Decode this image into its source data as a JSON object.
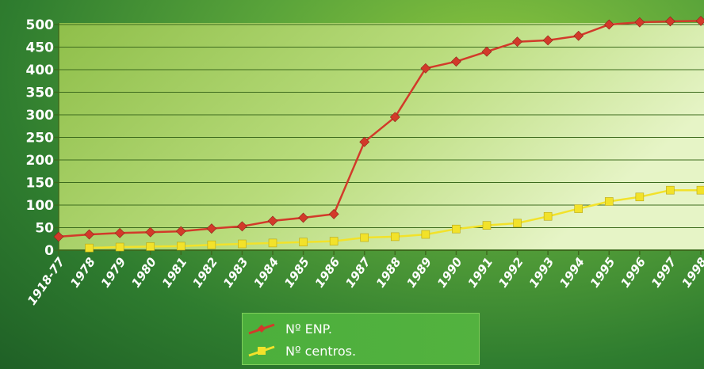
{
  "chart_data": {
    "type": "line",
    "categories": [
      "1918-77",
      "1978",
      "1979",
      "1980",
      "1981",
      "1982",
      "1983",
      "1984",
      "1985",
      "1986",
      "1987",
      "1988",
      "1989",
      "1990",
      "1991",
      "1992",
      "1993",
      "1994",
      "1995",
      "1996",
      "1997",
      "1998"
    ],
    "series": [
      {
        "name": "Nº ENP.",
        "color": "#d23a2a",
        "marker": "diamond",
        "values": [
          30,
          35,
          38,
          40,
          42,
          48,
          53,
          65,
          72,
          80,
          240,
          295,
          403,
          418,
          440,
          462,
          465,
          475,
          500,
          505,
          507,
          508
        ]
      },
      {
        "name": "Nº centros.",
        "color": "#f2e22a",
        "marker": "square",
        "values": [
          null,
          5,
          7,
          8,
          9,
          12,
          14,
          16,
          18,
          20,
          28,
          30,
          35,
          47,
          55,
          60,
          75,
          92,
          108,
          118,
          133,
          133
        ]
      }
    ],
    "ylim": [
      0,
      500
    ],
    "yticks": [
      0,
      50,
      100,
      150,
      200,
      250,
      300,
      350,
      400,
      450,
      500
    ],
    "grid": true,
    "legend_position": "bottom-center"
  },
  "legend": {
    "enp_label": "Nº ENP.",
    "centros_label": "Nº centros."
  }
}
